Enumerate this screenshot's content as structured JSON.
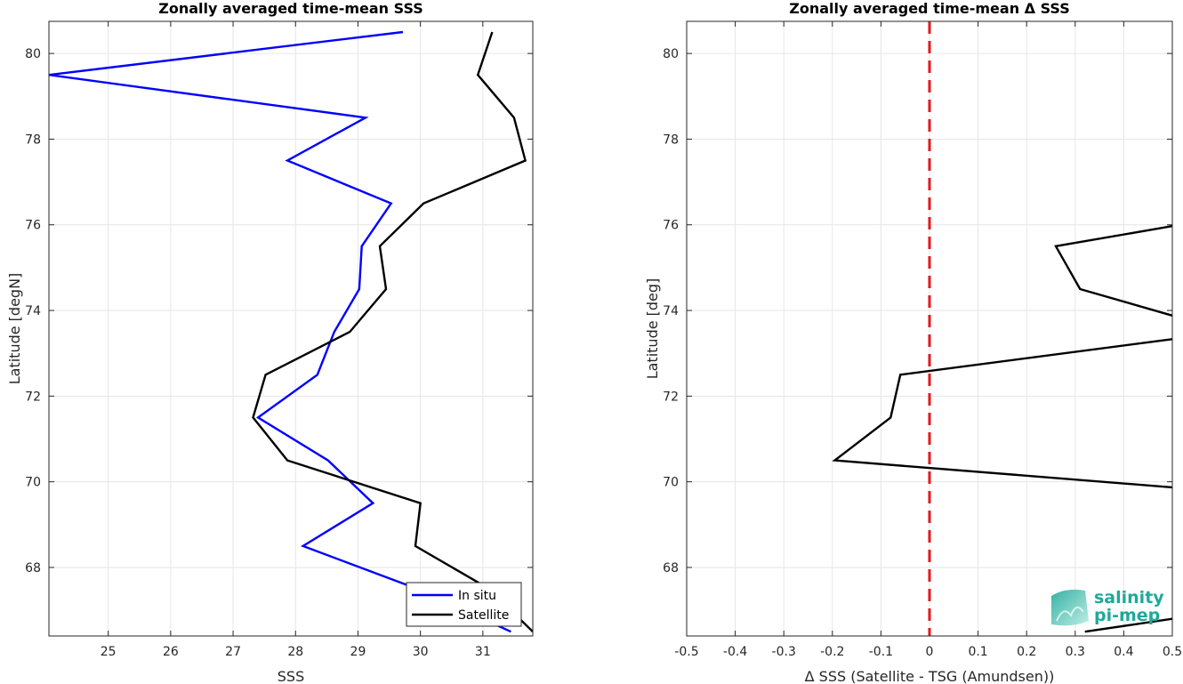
{
  "chart_data": [
    {
      "type": "line",
      "title": "Zonally averaged time-mean SSS",
      "xlabel": "SSS",
      "ylabel": "Latitude [degN]",
      "xlim": [
        24.05,
        31.8
      ],
      "ylim": [
        66.4,
        80.75
      ],
      "xticks": [
        "25",
        "26",
        "27",
        "28",
        "29",
        "30",
        "31"
      ],
      "yticks": [
        "68",
        "70",
        "72",
        "74",
        "76",
        "78",
        "80"
      ],
      "grid": true,
      "legend": "bottom-right",
      "series": [
        {
          "name": "In situ",
          "color": "#0000ff",
          "points": [
            [
              29.72,
              80.5
            ],
            [
              24.05,
              79.5
            ],
            [
              29.12,
              78.5
            ],
            [
              27.87,
              77.5
            ],
            [
              29.53,
              76.5
            ],
            [
              29.06,
              75.5
            ],
            [
              29.02,
              74.5
            ],
            [
              28.62,
              73.5
            ],
            [
              28.35,
              72.5
            ],
            [
              27.4,
              71.5
            ],
            [
              28.52,
              70.5
            ],
            [
              29.24,
              69.5
            ],
            [
              28.12,
              68.5
            ],
            [
              29.95,
              67.5
            ],
            [
              31.45,
              66.5
            ]
          ]
        },
        {
          "name": "Satellite",
          "color": "#000000",
          "points": [
            [
              31.15,
              80.5
            ],
            [
              30.92,
              79.5
            ],
            [
              31.5,
              78.5
            ],
            [
              31.68,
              77.5
            ],
            [
              30.05,
              76.5
            ],
            [
              29.35,
              75.5
            ],
            [
              29.45,
              74.5
            ],
            [
              28.87,
              73.5
            ],
            [
              27.52,
              72.5
            ],
            [
              27.32,
              71.5
            ],
            [
              27.87,
              70.5
            ],
            [
              30.0,
              69.5
            ],
            [
              29.92,
              68.5
            ],
            [
              31.1,
              67.5
            ],
            [
              31.8,
              66.5
            ]
          ]
        }
      ]
    },
    {
      "type": "line",
      "title": "Zonally averaged time-mean Δ SSS",
      "xlabel": "Δ SSS (Satellite - TSG (Amundsen))",
      "ylabel": "Latitude [deg]",
      "xlim": [
        -0.5,
        0.5
      ],
      "ylim": [
        66.4,
        80.75
      ],
      "xticks": [
        "-0.5",
        "-0.4",
        "-0.3",
        "-0.2",
        "-0.1",
        "0",
        "0.1",
        "0.2",
        "0.3",
        "0.4",
        "0.5"
      ],
      "yticks": [
        "68",
        "70",
        "72",
        "74",
        "76",
        "78",
        "80"
      ],
      "grid": true,
      "reference_line": {
        "x": 0,
        "color": "#e31a1c",
        "style": "dashed"
      },
      "series": [
        {
          "color": "#000000",
          "points": [
            [
              0.5,
              75.97
            ],
            [
              0.26,
              75.5
            ],
            [
              0.31,
              74.5
            ],
            [
              0.5,
              73.88
            ],
            [
              null,
              null
            ],
            [
              0.5,
              73.33
            ],
            [
              -0.06,
              72.5
            ],
            [
              -0.08,
              71.5
            ],
            [
              -0.195,
              70.5
            ],
            [
              0.5,
              69.87
            ],
            [
              null,
              null
            ],
            [
              0.32,
              66.5
            ],
            [
              0.5,
              66.8
            ]
          ]
        }
      ]
    }
  ],
  "logo": {
    "line1": "salinity",
    "line2": "pi-mep"
  }
}
